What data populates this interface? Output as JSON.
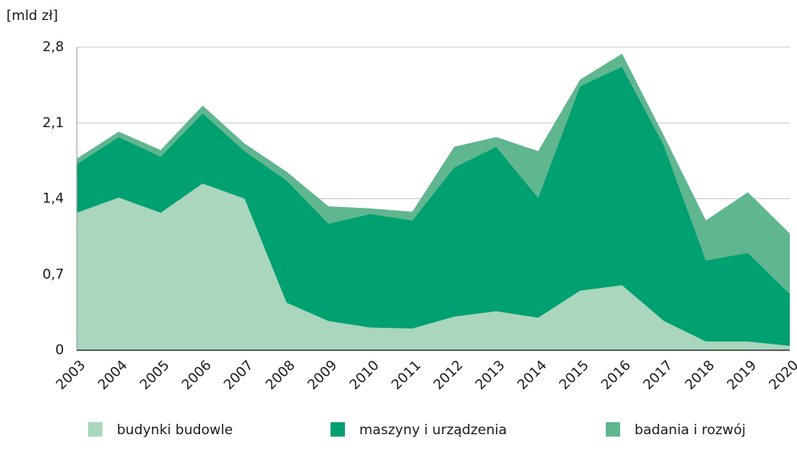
{
  "chart_data": {
    "type": "stacked_area",
    "unit_label": "[mld zł]",
    "categories": [
      "2003",
      "2004",
      "2005",
      "2006",
      "2007",
      "2008",
      "2009",
      "2010",
      "2011",
      "2012",
      "2013",
      "2014",
      "2015",
      "2016",
      "2017",
      "2018",
      "2019",
      "2020"
    ],
    "series": [
      {
        "name": "budynki budowle",
        "color": "#a9d6bd",
        "values": [
          1.27,
          1.41,
          1.27,
          1.54,
          1.4,
          0.44,
          0.27,
          0.21,
          0.2,
          0.31,
          0.36,
          0.3,
          0.55,
          0.6,
          0.27,
          0.08,
          0.08,
          0.04
        ]
      },
      {
        "name": "maszyny i urządzenia",
        "color": "#00a070",
        "values": [
          0.45,
          0.56,
          0.52,
          0.65,
          0.44,
          1.13,
          0.9,
          1.05,
          1.0,
          1.38,
          1.52,
          1.11,
          1.89,
          2.02,
          1.62,
          0.75,
          0.82,
          0.48
        ]
      },
      {
        "name": "badania i rozwój",
        "color": "#60b68f",
        "values": [
          0.05,
          0.05,
          0.06,
          0.07,
          0.07,
          0.08,
          0.16,
          0.05,
          0.08,
          0.19,
          0.09,
          0.43,
          0.06,
          0.12,
          0.09,
          0.37,
          0.56,
          0.56
        ]
      }
    ],
    "ylim": [
      0,
      2.8
    ],
    "yticks": [
      0,
      {
        "value": 0.7,
        "label": "0,7"
      },
      {
        "value": 1.4,
        "label": "1,4"
      },
      {
        "value": 2.1,
        "label": "2,1"
      },
      {
        "value": 2.8,
        "label": "2,8"
      }
    ],
    "grid": true,
    "legend": "bottom"
  }
}
